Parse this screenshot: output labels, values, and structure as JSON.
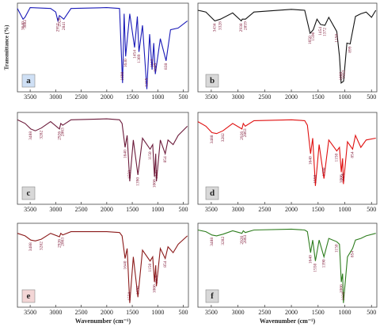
{
  "chart_data": [
    {
      "type": "line",
      "label": "a",
      "color": "#1a1ab8",
      "y_label": "Transmittance (%)",
      "x": [
        3750,
        3640,
        3602,
        3500,
        3100,
        3000,
        2957,
        2926,
        2841,
        2700,
        2000,
        1750,
        1690,
        1660,
        1630,
        1550,
        1454,
        1400,
        1369,
        1300,
        1215,
        1160,
        1112,
        1080,
        1049,
        950,
        838,
        750,
        600,
        420
      ],
      "values": [
        94,
        82,
        84,
        95,
        94,
        90,
        80,
        86,
        82,
        94,
        95,
        94,
        10,
        88,
        40,
        88,
        50,
        85,
        45,
        75,
        3,
        65,
        25,
        55,
        20,
        60,
        35,
        70,
        72,
        80
      ],
      "peaks": [
        3640,
        3602,
        2957,
        2926,
        2841,
        1690,
        1630,
        1454,
        1369,
        1215,
        1112,
        1049,
        838
      ],
      "xlim": [
        3750,
        400
      ],
      "ylim": [
        0,
        100
      ],
      "xticks": [
        3500,
        3000,
        2500,
        2000,
        1500,
        1000,
        500
      ]
    },
    {
      "type": "line",
      "label": "b",
      "color": "#111111",
      "x": [
        3750,
        3600,
        3434,
        3328,
        3100,
        2938,
        2920,
        2859,
        2700,
        2000,
        1750,
        1650,
        1590,
        1520,
        1454,
        1372,
        1300,
        1150,
        1100,
        1068,
        1022,
        960,
        899,
        800,
        700,
        600,
        500,
        420
      ],
      "values": [
        92,
        90,
        80,
        82,
        89,
        80,
        82,
        82,
        90,
        93,
        92,
        66,
        70,
        82,
        76,
        75,
        84,
        68,
        40,
        10,
        12,
        55,
        54,
        85,
        88,
        90,
        84,
        92
      ],
      "peaks": [
        3434,
        3328,
        2938,
        2859,
        1650,
        1590,
        1454,
        1372,
        1150,
        1068,
        1022,
        899
      ],
      "xlim": [
        3750,
        400
      ],
      "ylim": [
        0,
        100
      ],
      "xticks": [
        3500,
        3000,
        2500,
        2000,
        1500,
        1000,
        500
      ]
    },
    {
      "type": "line",
      "label": "c",
      "color": "#6b1a3a",
      "x": [
        3750,
        3600,
        3488,
        3400,
        3282,
        3100,
        2926,
        2900,
        2863,
        2700,
        2000,
        1750,
        1700,
        1640,
        1600,
        1550,
        1480,
        1390,
        1300,
        1150,
        1100,
        1066,
        1040,
        1026,
        950,
        854,
        800,
        700,
        600,
        420
      ],
      "values": [
        92,
        88,
        82,
        80,
        83,
        90,
        82,
        88,
        86,
        92,
        93,
        92,
        88,
        62,
        75,
        25,
        70,
        32,
        72,
        60,
        65,
        30,
        55,
        25,
        70,
        55,
        70,
        65,
        75,
        85
      ],
      "peaks": [
        3488,
        3282,
        2926,
        2863,
        1640,
        1550,
        1390,
        1150,
        1066,
        1026,
        854
      ],
      "xlim": [
        3750,
        400
      ],
      "ylim": [
        0,
        100
      ],
      "xticks": [
        3500,
        3000,
        2500,
        2000,
        1500,
        1000,
        500
      ]
    },
    {
      "type": "line",
      "label": "d",
      "color": "#e01010",
      "x": [
        3750,
        3600,
        3488,
        3400,
        3282,
        3100,
        2926,
        2900,
        2863,
        2700,
        2000,
        1750,
        1700,
        1640,
        1600,
        1550,
        1480,
        1390,
        1300,
        1150,
        1100,
        1066,
        1040,
        1026,
        950,
        854,
        800,
        700,
        600,
        420
      ],
      "values": [
        90,
        85,
        78,
        77,
        80,
        88,
        82,
        88,
        85,
        91,
        92,
        91,
        86,
        55,
        72,
        20,
        65,
        28,
        70,
        58,
        62,
        35,
        50,
        22,
        68,
        60,
        75,
        62,
        70,
        72
      ],
      "peaks": [
        3488,
        3282,
        2926,
        2863,
        1640,
        1550,
        1390,
        1150,
        1066,
        1026,
        854
      ],
      "xlim": [
        3750,
        400
      ],
      "ylim": [
        0,
        100
      ],
      "xticks": [
        3500,
        3000,
        2500,
        2000,
        1500,
        1000,
        500
      ]
    },
    {
      "type": "line",
      "label": "e",
      "color": "#8b1a1a",
      "x_label": "Wavenumber (cm⁻¹)",
      "x": [
        3750,
        3600,
        3488,
        3400,
        3282,
        3100,
        2926,
        2900,
        2863,
        2700,
        2000,
        1750,
        1700,
        1640,
        1600,
        1550,
        1480,
        1390,
        1300,
        1150,
        1100,
        1066,
        1040,
        1026,
        950,
        854,
        800,
        700,
        600,
        420
      ],
      "values": [
        88,
        85,
        80,
        79,
        81,
        88,
        84,
        88,
        86,
        90,
        90,
        89,
        85,
        58,
        70,
        5,
        60,
        12,
        68,
        55,
        60,
        30,
        50,
        25,
        70,
        58,
        72,
        65,
        75,
        85
      ],
      "peaks": [
        3488,
        3282,
        2926,
        2863,
        1640,
        1550,
        1390,
        1150,
        1066,
        1026,
        854
      ],
      "xlim": [
        3750,
        400
      ],
      "ylim": [
        0,
        100
      ],
      "xticks": [
        3500,
        3000,
        2500,
        2000,
        1500,
        1000,
        500
      ]
    },
    {
      "type": "line",
      "label": "f",
      "color": "#2e7d1e",
      "x_label": "Wavenumber (cm⁻¹)",
      "x": [
        3750,
        3600,
        3488,
        3400,
        3282,
        3100,
        2926,
        2900,
        2863,
        2700,
        2000,
        1750,
        1700,
        1640,
        1600,
        1550,
        1480,
        1390,
        1300,
        1150,
        1100,
        1066,
        1040,
        1026,
        950,
        854,
        800,
        700,
        600,
        420
      ],
      "values": [
        92,
        90,
        86,
        85,
        87,
        91,
        88,
        91,
        89,
        92,
        93,
        92,
        90,
        65,
        80,
        55,
        80,
        60,
        82,
        78,
        75,
        30,
        40,
        5,
        60,
        70,
        80,
        82,
        85,
        88
      ],
      "peaks": [
        3488,
        3282,
        2926,
        2863,
        1640,
        1550,
        1390,
        1150,
        1066,
        1026,
        854
      ],
      "xlim": [
        3750,
        400
      ],
      "ylim": [
        0,
        100
      ],
      "xticks": [
        3500,
        3000,
        2500,
        2000,
        1500,
        1000,
        500
      ]
    }
  ]
}
